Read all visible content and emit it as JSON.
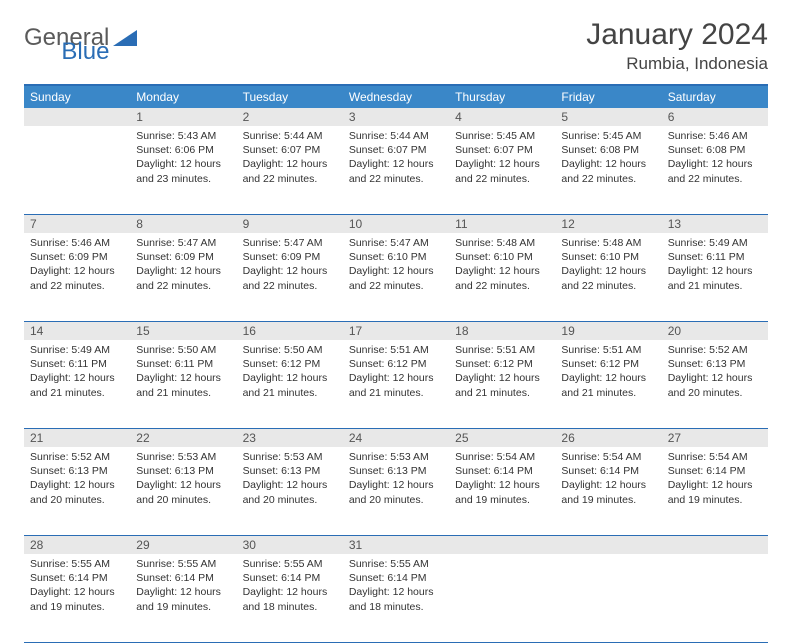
{
  "logo": {
    "text1": "General",
    "text2": "Blue"
  },
  "title": "January 2024",
  "location": "Rumbia, Indonesia",
  "colors": {
    "header_bg": "#3a87c8",
    "border": "#2a6db5",
    "daynum_bg": "#e8e8e8",
    "text": "#333333"
  },
  "day_names": [
    "Sunday",
    "Monday",
    "Tuesday",
    "Wednesday",
    "Thursday",
    "Friday",
    "Saturday"
  ],
  "weeks": [
    [
      null,
      {
        "n": "1",
        "sr": "5:43 AM",
        "ss": "6:06 PM",
        "dl": "12 hours and 23 minutes."
      },
      {
        "n": "2",
        "sr": "5:44 AM",
        "ss": "6:07 PM",
        "dl": "12 hours and 22 minutes."
      },
      {
        "n": "3",
        "sr": "5:44 AM",
        "ss": "6:07 PM",
        "dl": "12 hours and 22 minutes."
      },
      {
        "n": "4",
        "sr": "5:45 AM",
        "ss": "6:07 PM",
        "dl": "12 hours and 22 minutes."
      },
      {
        "n": "5",
        "sr": "5:45 AM",
        "ss": "6:08 PM",
        "dl": "12 hours and 22 minutes."
      },
      {
        "n": "6",
        "sr": "5:46 AM",
        "ss": "6:08 PM",
        "dl": "12 hours and 22 minutes."
      }
    ],
    [
      {
        "n": "7",
        "sr": "5:46 AM",
        "ss": "6:09 PM",
        "dl": "12 hours and 22 minutes."
      },
      {
        "n": "8",
        "sr": "5:47 AM",
        "ss": "6:09 PM",
        "dl": "12 hours and 22 minutes."
      },
      {
        "n": "9",
        "sr": "5:47 AM",
        "ss": "6:09 PM",
        "dl": "12 hours and 22 minutes."
      },
      {
        "n": "10",
        "sr": "5:47 AM",
        "ss": "6:10 PM",
        "dl": "12 hours and 22 minutes."
      },
      {
        "n": "11",
        "sr": "5:48 AM",
        "ss": "6:10 PM",
        "dl": "12 hours and 22 minutes."
      },
      {
        "n": "12",
        "sr": "5:48 AM",
        "ss": "6:10 PM",
        "dl": "12 hours and 22 minutes."
      },
      {
        "n": "13",
        "sr": "5:49 AM",
        "ss": "6:11 PM",
        "dl": "12 hours and 21 minutes."
      }
    ],
    [
      {
        "n": "14",
        "sr": "5:49 AM",
        "ss": "6:11 PM",
        "dl": "12 hours and 21 minutes."
      },
      {
        "n": "15",
        "sr": "5:50 AM",
        "ss": "6:11 PM",
        "dl": "12 hours and 21 minutes."
      },
      {
        "n": "16",
        "sr": "5:50 AM",
        "ss": "6:12 PM",
        "dl": "12 hours and 21 minutes."
      },
      {
        "n": "17",
        "sr": "5:51 AM",
        "ss": "6:12 PM",
        "dl": "12 hours and 21 minutes."
      },
      {
        "n": "18",
        "sr": "5:51 AM",
        "ss": "6:12 PM",
        "dl": "12 hours and 21 minutes."
      },
      {
        "n": "19",
        "sr": "5:51 AM",
        "ss": "6:12 PM",
        "dl": "12 hours and 21 minutes."
      },
      {
        "n": "20",
        "sr": "5:52 AM",
        "ss": "6:13 PM",
        "dl": "12 hours and 20 minutes."
      }
    ],
    [
      {
        "n": "21",
        "sr": "5:52 AM",
        "ss": "6:13 PM",
        "dl": "12 hours and 20 minutes."
      },
      {
        "n": "22",
        "sr": "5:53 AM",
        "ss": "6:13 PM",
        "dl": "12 hours and 20 minutes."
      },
      {
        "n": "23",
        "sr": "5:53 AM",
        "ss": "6:13 PM",
        "dl": "12 hours and 20 minutes."
      },
      {
        "n": "24",
        "sr": "5:53 AM",
        "ss": "6:13 PM",
        "dl": "12 hours and 20 minutes."
      },
      {
        "n": "25",
        "sr": "5:54 AM",
        "ss": "6:14 PM",
        "dl": "12 hours and 19 minutes."
      },
      {
        "n": "26",
        "sr": "5:54 AM",
        "ss": "6:14 PM",
        "dl": "12 hours and 19 minutes."
      },
      {
        "n": "27",
        "sr": "5:54 AM",
        "ss": "6:14 PM",
        "dl": "12 hours and 19 minutes."
      }
    ],
    [
      {
        "n": "28",
        "sr": "5:55 AM",
        "ss": "6:14 PM",
        "dl": "12 hours and 19 minutes."
      },
      {
        "n": "29",
        "sr": "5:55 AM",
        "ss": "6:14 PM",
        "dl": "12 hours and 19 minutes."
      },
      {
        "n": "30",
        "sr": "5:55 AM",
        "ss": "6:14 PM",
        "dl": "12 hours and 18 minutes."
      },
      {
        "n": "31",
        "sr": "5:55 AM",
        "ss": "6:14 PM",
        "dl": "12 hours and 18 minutes."
      },
      null,
      null,
      null
    ]
  ],
  "labels": {
    "sunrise": "Sunrise:",
    "sunset": "Sunset:",
    "daylight": "Daylight:"
  }
}
